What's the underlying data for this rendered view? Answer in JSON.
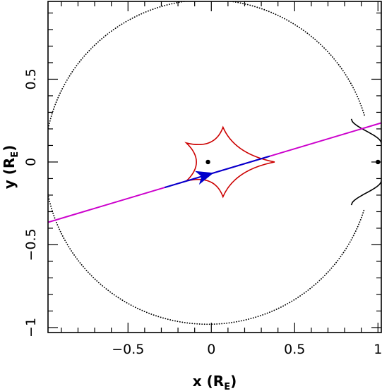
{
  "chart_data": {
    "type": "line",
    "title": "",
    "xlabel": "x (R_E)",
    "ylabel": "y (R_E)",
    "xlabel_parts": {
      "main": "x (R",
      "sub": "E",
      "end": ")"
    },
    "ylabel_parts": {
      "main": "y (R",
      "sub": "E",
      "end": ")"
    },
    "xlim": [
      -0.98,
      1.02
    ],
    "ylim": [
      -1.03,
      0.97
    ],
    "xticks": [
      {
        "value": -0.5,
        "label": "−0.5"
      },
      {
        "value": 0,
        "label": "0"
      },
      {
        "value": 0.5,
        "label": "0.5"
      },
      {
        "value": 1,
        "label": "1"
      }
    ],
    "yticks": [
      {
        "value": -1,
        "label": "−1"
      },
      {
        "value": -0.5,
        "label": "−0.5"
      },
      {
        "value": 0,
        "label": "0"
      },
      {
        "value": 0.5,
        "label": "0.5"
      }
    ],
    "grid": false,
    "colors": {
      "critical_curve": "#000000",
      "caustic": "#cc0000",
      "trajectory": "#0000cc",
      "trajectory_extension": "#cc00cc",
      "lens_points": "#000000"
    },
    "lens_points": [
      {
        "x": -0.02,
        "y": 0.0
      },
      {
        "x": 1.0,
        "y": 0.0
      }
    ],
    "caustic": {
      "cusps": [
        {
          "x": 0.07,
          "y": 0.21
        },
        {
          "x": 0.38,
          "y": 0.0
        },
        {
          "x": 0.07,
          "y": -0.21
        },
        {
          "x": -0.15,
          "y": 0.115
        },
        {
          "x": -0.15,
          "y": -0.115
        }
      ]
    },
    "trajectory": {
      "slope": 0.3,
      "intercept": -0.07,
      "drawn_x_range": [
        -0.28,
        0.35
      ],
      "extension_x_range": [
        -0.98,
        1.02
      ],
      "arrow_at": {
        "x": -0.04,
        "y": -0.082
      }
    },
    "critical_curve": {
      "outer_radius": 0.98,
      "outer_center": {
        "x": -0.02,
        "y": 0.0
      },
      "join_x": 0.84,
      "join_y": 0.26
    }
  }
}
